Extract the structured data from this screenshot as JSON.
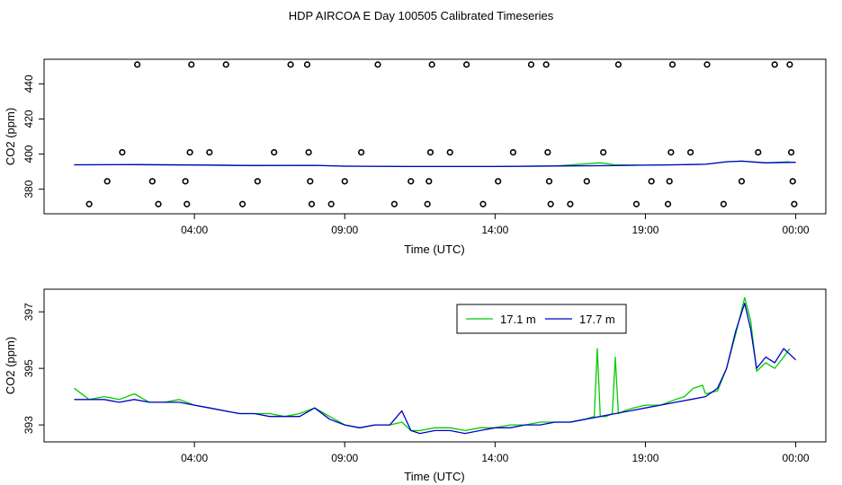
{
  "title": "HDP AIRCOA E  Day 100505  Calibrated Timeseries",
  "chart_data": [
    {
      "type": "scatter",
      "xlabel": "Time (UTC)",
      "ylabel": "CO2 (ppm)",
      "xticks": [
        {
          "value": 4,
          "label": "04:00"
        },
        {
          "value": 9,
          "label": "09:00"
        },
        {
          "value": 14,
          "label": "14:00"
        },
        {
          "value": 19,
          "label": "19:00"
        },
        {
          "value": 24,
          "label": "00:00"
        }
      ],
      "yticks": [
        380,
        400,
        420,
        440
      ],
      "xlim": [
        -1,
        25
      ],
      "ylim": [
        366,
        454
      ],
      "series": [
        {
          "kind": "line",
          "color": "#00cc00",
          "points": [
            [
              0,
              393.9
            ],
            [
              2,
              394.0
            ],
            [
              4,
              393.8
            ],
            [
              6,
              393.5
            ],
            [
              8,
              393.6
            ],
            [
              9,
              393.1
            ],
            [
              11,
              392.9
            ],
            [
              14,
              392.9
            ],
            [
              16,
              393.2
            ],
            [
              17.5,
              395.0
            ],
            [
              18,
              393.9
            ],
            [
              19,
              393.7
            ],
            [
              20,
              393.9
            ],
            [
              21,
              394.2
            ],
            [
              21.7,
              395.6
            ],
            [
              22.2,
              396.0
            ],
            [
              23,
              395.0
            ],
            [
              23.8,
              395.6
            ]
          ]
        },
        {
          "kind": "line",
          "color": "#0000cc",
          "points": [
            [
              0,
              393.9
            ],
            [
              2,
              394.0
            ],
            [
              4,
              393.8
            ],
            [
              6,
              393.5
            ],
            [
              8,
              393.6
            ],
            [
              9,
              393.1
            ],
            [
              11,
              392.9
            ],
            [
              14,
              392.9
            ],
            [
              16,
              393.2
            ],
            [
              18,
              393.4
            ],
            [
              19,
              393.7
            ],
            [
              20,
              393.9
            ],
            [
              21,
              394.2
            ],
            [
              21.7,
              395.6
            ],
            [
              22.2,
              396.0
            ],
            [
              23,
              395.0
            ],
            [
              24,
              395.3
            ]
          ]
        },
        {
          "kind": "points",
          "color": "#000000",
          "points": [
            [
              0.5,
              371.5
            ],
            [
              1.1,
              384.5
            ],
            [
              1.6,
              401
            ],
            [
              2.1,
              451
            ],
            [
              2.6,
              384.5
            ],
            [
              2.8,
              371.5
            ],
            [
              3.7,
              384.5
            ],
            [
              3.75,
              371.5
            ],
            [
              3.85,
              401
            ],
            [
              3.9,
              451
            ],
            [
              4.5,
              401
            ],
            [
              5.05,
              451
            ],
            [
              5.6,
              371.5
            ],
            [
              6.1,
              384.5
            ],
            [
              6.65,
              401
            ],
            [
              7.2,
              451
            ],
            [
              7.75,
              451
            ],
            [
              7.8,
              401
            ],
            [
              7.85,
              384.5
            ],
            [
              7.9,
              371.5
            ],
            [
              8.55,
              371.5
            ],
            [
              9.0,
              384.5
            ],
            [
              9.55,
              401
            ],
            [
              10.1,
              451
            ],
            [
              10.65,
              371.5
            ],
            [
              11.2,
              384.5
            ],
            [
              11.75,
              371.5
            ],
            [
              11.8,
              384.5
            ],
            [
              11.85,
              401
            ],
            [
              11.9,
              451
            ],
            [
              12.5,
              401
            ],
            [
              13.05,
              451
            ],
            [
              13.6,
              371.5
            ],
            [
              14.1,
              384.5
            ],
            [
              14.6,
              401
            ],
            [
              15.2,
              451
            ],
            [
              15.7,
              451
            ],
            [
              15.75,
              401
            ],
            [
              15.8,
              384.5
            ],
            [
              15.85,
              371.5
            ],
            [
              16.5,
              371.5
            ],
            [
              17.05,
              384.5
            ],
            [
              17.6,
              401
            ],
            [
              18.1,
              451
            ],
            [
              18.7,
              371.5
            ],
            [
              19.2,
              384.5
            ],
            [
              19.75,
              371.5
            ],
            [
              19.8,
              384.5
            ],
            [
              19.85,
              401
            ],
            [
              19.9,
              451
            ],
            [
              20.5,
              401
            ],
            [
              21.05,
              451
            ],
            [
              21.6,
              371.5
            ],
            [
              22.2,
              384.5
            ],
            [
              22.75,
              401
            ],
            [
              23.3,
              451
            ],
            [
              23.8,
              451
            ],
            [
              23.85,
              401
            ],
            [
              23.9,
              384.5
            ],
            [
              23.95,
              371.5
            ]
          ]
        }
      ]
    },
    {
      "type": "line",
      "xlabel": "Time (UTC)",
      "ylabel": "CO2 (ppm)",
      "xticks": [
        {
          "value": 4,
          "label": "04:00"
        },
        {
          "value": 9,
          "label": "09:00"
        },
        {
          "value": 14,
          "label": "14:00"
        },
        {
          "value": 19,
          "label": "19:00"
        },
        {
          "value": 24,
          "label": "00:00"
        }
      ],
      "yticks": [
        393,
        395,
        397
      ],
      "xlim": [
        -1,
        25
      ],
      "ylim": [
        392.4,
        397.8
      ],
      "legend": {
        "placement": "top-center",
        "entries": [
          {
            "name": "17.1 m",
            "color": "#00cc00"
          },
          {
            "name": "17.7 m",
            "color": "#0000cc"
          }
        ]
      },
      "series": [
        {
          "name": "17.1 m",
          "color": "#00cc00",
          "x": [
            0,
            0.5,
            1,
            1.5,
            2,
            2.5,
            3,
            3.5,
            4,
            4.5,
            5,
            5.5,
            6,
            6.5,
            7,
            7.5,
            8,
            8.5,
            9,
            9.5,
            10,
            10.5,
            10.9,
            11.2,
            11.5,
            12,
            12.5,
            13,
            13.5,
            14,
            14.5,
            15,
            15.5,
            16,
            16.5,
            17,
            17.3,
            17.4,
            17.5,
            17.7,
            17.9,
            18.0,
            18.1,
            18.3,
            18.6,
            19,
            19.5,
            20,
            20.3,
            20.6,
            20.9,
            21,
            21.4,
            21.7,
            22,
            22.3,
            22.5,
            22.7,
            23,
            23.3,
            23.6,
            23.8
          ],
          "y": [
            394.3,
            393.9,
            394.0,
            393.9,
            394.1,
            393.8,
            393.8,
            393.9,
            393.7,
            393.6,
            393.5,
            393.4,
            393.4,
            393.4,
            393.3,
            393.4,
            393.6,
            393.3,
            393.0,
            392.9,
            393.0,
            393.0,
            393.1,
            392.8,
            392.8,
            392.9,
            392.9,
            392.8,
            392.9,
            392.9,
            393.0,
            393.0,
            393.1,
            393.1,
            393.1,
            393.2,
            393.3,
            395.7,
            393.3,
            393.3,
            393.4,
            395.4,
            393.4,
            393.5,
            393.6,
            393.7,
            393.7,
            393.9,
            394.0,
            394.3,
            394.4,
            394.1,
            394.2,
            395.0,
            396.2,
            397.5,
            396.7,
            394.9,
            395.2,
            395.0,
            395.4,
            395.7
          ]
        },
        {
          "name": "17.7 m",
          "color": "#0000cc",
          "x": [
            0,
            0.5,
            1,
            1.5,
            2,
            2.5,
            3,
            3.5,
            4,
            4.5,
            5,
            5.5,
            6,
            6.5,
            7,
            7.5,
            8,
            8.5,
            9,
            9.5,
            10,
            10.5,
            10.9,
            11.2,
            11.5,
            12,
            12.5,
            13,
            13.5,
            14,
            14.5,
            15,
            15.5,
            16,
            16.5,
            17,
            17.5,
            18,
            18.5,
            19,
            19.5,
            20,
            20.5,
            21,
            21.4,
            21.7,
            22,
            22.3,
            22.5,
            22.7,
            23,
            23.3,
            23.6,
            24
          ],
          "y": [
            393.9,
            393.9,
            393.9,
            393.8,
            393.9,
            393.8,
            393.8,
            393.8,
            393.7,
            393.6,
            393.5,
            393.4,
            393.4,
            393.3,
            393.3,
            393.3,
            393.6,
            393.2,
            393.0,
            392.9,
            393.0,
            393.0,
            393.5,
            392.8,
            392.7,
            392.8,
            392.8,
            392.7,
            392.8,
            392.9,
            392.9,
            393.0,
            393.0,
            393.1,
            393.1,
            393.2,
            393.3,
            393.4,
            393.5,
            393.6,
            393.7,
            393.8,
            393.9,
            394.0,
            394.3,
            395.0,
            396.3,
            397.3,
            396.4,
            395.0,
            395.4,
            395.2,
            395.7,
            395.3
          ]
        }
      ]
    }
  ]
}
